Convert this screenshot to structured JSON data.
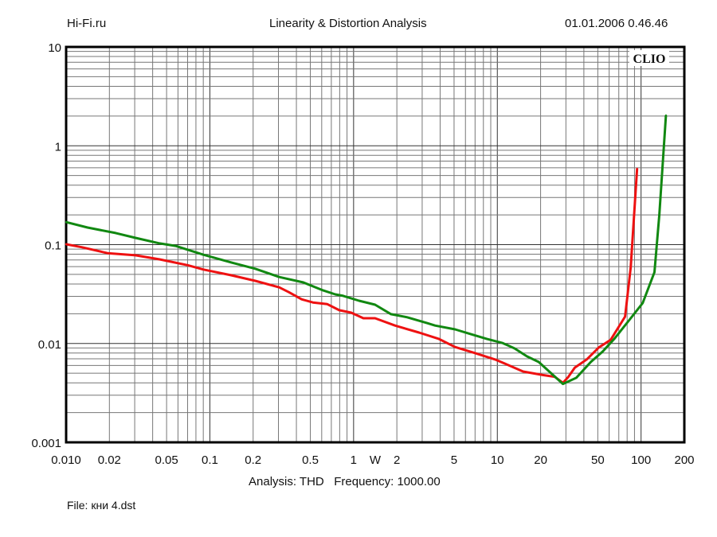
{
  "header": {
    "left": "Hi-Fi.ru",
    "title": "Linearity & Distortion Analysis",
    "datetime": "01.01.2006 0.46.46"
  },
  "footer": {
    "analysis": "Analysis: THD   Frequency: 1000.00",
    "file": "File: кни 4.dst"
  },
  "chart_data": {
    "type": "line",
    "title": "Linearity & Distortion Analysis",
    "watermark": "CLIO",
    "xlabel": "W",
    "ylabel": "",
    "xscale": "log",
    "yscale": "log",
    "xlim": [
      0.01,
      200
    ],
    "ylim": [
      0.001,
      10
    ],
    "grid": true,
    "x_ticks": [
      {
        "v": 0.01,
        "label": "0.010"
      },
      {
        "v": 0.02,
        "label": "0.02"
      },
      {
        "v": 0.05,
        "label": "0.05"
      },
      {
        "v": 0.1,
        "label": "0.1"
      },
      {
        "v": 0.2,
        "label": "0.2"
      },
      {
        "v": 0.5,
        "label": "0.5"
      },
      {
        "v": 1,
        "label": "1"
      },
      {
        "v": 2,
        "label": "2"
      },
      {
        "v": 5,
        "label": "5"
      },
      {
        "v": 10,
        "label": "10"
      },
      {
        "v": 20,
        "label": "20"
      },
      {
        "v": 50,
        "label": "50"
      },
      {
        "v": 100,
        "label": "100"
      },
      {
        "v": 200,
        "label": "200"
      }
    ],
    "y_ticks": [
      {
        "v": 10,
        "label": "10"
      },
      {
        "v": 1,
        "label": "1"
      },
      {
        "v": 0.1,
        "label": "0.1"
      },
      {
        "v": 0.01,
        "label": "0.01"
      },
      {
        "v": 0.001,
        "label": "0.001"
      }
    ],
    "series": [
      {
        "name": "red",
        "color": "#ee1111",
        "x": [
          0.01,
          0.0129,
          0.0194,
          0.0304,
          0.0447,
          0.0699,
          0.0903,
          0.141,
          0.207,
          0.304,
          0.355,
          0.435,
          0.521,
          0.656,
          0.794,
          0.962,
          1.17,
          1.41,
          1.94,
          2.85,
          3.93,
          5.08,
          6.99,
          9.62,
          12.4,
          15.1,
          20.7,
          25.1,
          28.6,
          31.2,
          34.6,
          41.9,
          50.8,
          61.5,
          77.4,
          84.7,
          93.8
        ],
        "y": [
          0.101,
          0.094,
          0.082,
          0.078,
          0.071,
          0.062,
          0.056,
          0.049,
          0.043,
          0.037,
          0.033,
          0.028,
          0.026,
          0.025,
          0.0217,
          0.0205,
          0.018,
          0.018,
          0.0152,
          0.0129,
          0.0111,
          0.0092,
          0.008,
          0.0069,
          0.0059,
          0.0052,
          0.0048,
          0.0046,
          0.004,
          0.0046,
          0.0057,
          0.0069,
          0.0091,
          0.0109,
          0.0187,
          0.059,
          0.587
        ]
      },
      {
        "name": "green",
        "color": "#118811",
        "x": [
          0.01,
          0.0141,
          0.0221,
          0.0304,
          0.0447,
          0.0577,
          0.0903,
          0.141,
          0.207,
          0.304,
          0.447,
          0.615,
          0.745,
          0.847,
          1.09,
          1.41,
          1.82,
          2.36,
          3.24,
          3.69,
          5.08,
          6.56,
          8.47,
          10.9,
          13.2,
          16.1,
          19.4,
          28.6,
          35.5,
          44.7,
          54.1,
          65.6,
          84.7,
          102.6,
          124,
          134,
          149
        ],
        "y": [
          0.169,
          0.149,
          0.131,
          0.117,
          0.103,
          0.097,
          0.079,
          0.066,
          0.057,
          0.047,
          0.0415,
          0.0344,
          0.0314,
          0.0303,
          0.0271,
          0.0247,
          0.0198,
          0.0184,
          0.0161,
          0.0152,
          0.0139,
          0.0124,
          0.0111,
          0.0101,
          0.0089,
          0.0074,
          0.0065,
          0.0039,
          0.0045,
          0.0065,
          0.0083,
          0.0113,
          0.018,
          0.0256,
          0.0527,
          0.2,
          2.03
        ]
      }
    ]
  }
}
